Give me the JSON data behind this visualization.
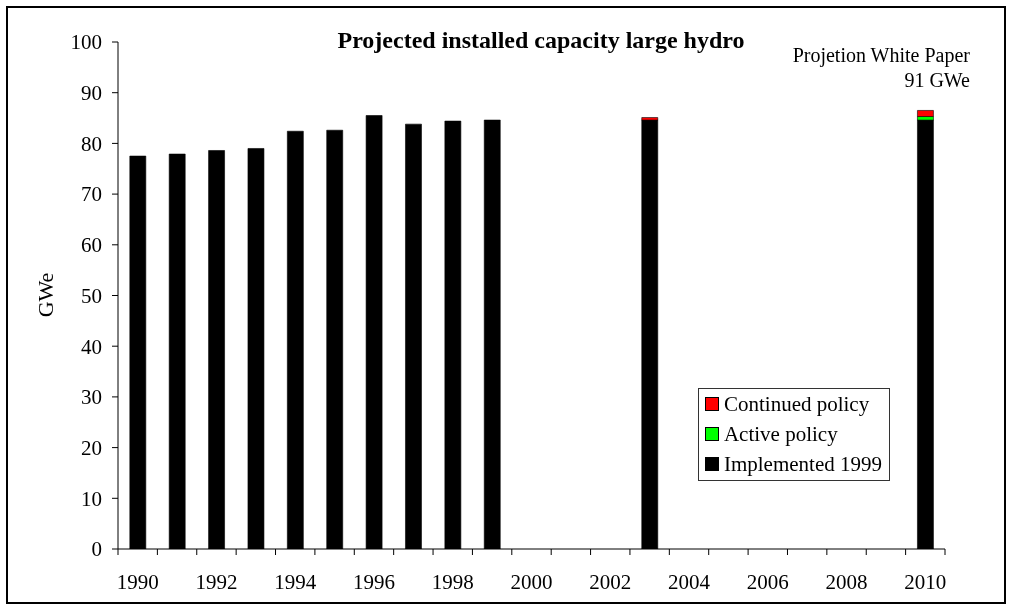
{
  "chart_data": {
    "type": "bar",
    "title": "Projected installed capacity large hydro",
    "ylabel": "GWe",
    "annotations": [
      "Projetion White Paper\n91 GWe"
    ],
    "categories": [
      "1990",
      null,
      "1992",
      null,
      "1994",
      null,
      "1996",
      null,
      "1998",
      null,
      "2000",
      null,
      "2002",
      null,
      "2004",
      null,
      "2006",
      null,
      "2008",
      null,
      "2010"
    ],
    "stacked": true,
    "series": [
      {
        "name": "Implemented 1999",
        "color": "#000000",
        "values": [
          77.5,
          77.9,
          78.6,
          79.0,
          82.4,
          82.6,
          85.5,
          83.8,
          84.4,
          84.6,
          null,
          null,
          null,
          84.6,
          null,
          null,
          null,
          null,
          null,
          null,
          84.6
        ]
      },
      {
        "name": "Active policy",
        "color": "#00ff00",
        "values": [
          null,
          null,
          null,
          null,
          null,
          null,
          null,
          null,
          null,
          null,
          null,
          null,
          null,
          null,
          null,
          null,
          null,
          null,
          null,
          null,
          0.7
        ]
      },
      {
        "name": "Continued policy",
        "color": "#ff0000",
        "values": [
          null,
          null,
          null,
          null,
          null,
          null,
          null,
          null,
          null,
          null,
          null,
          null,
          null,
          0.5,
          null,
          null,
          null,
          null,
          null,
          null,
          1.2
        ]
      }
    ],
    "ylim": [
      0,
      100
    ],
    "yticks": [
      0,
      10,
      20,
      30,
      40,
      50,
      60,
      70,
      80,
      90,
      100
    ],
    "legend": "bottom right"
  }
}
